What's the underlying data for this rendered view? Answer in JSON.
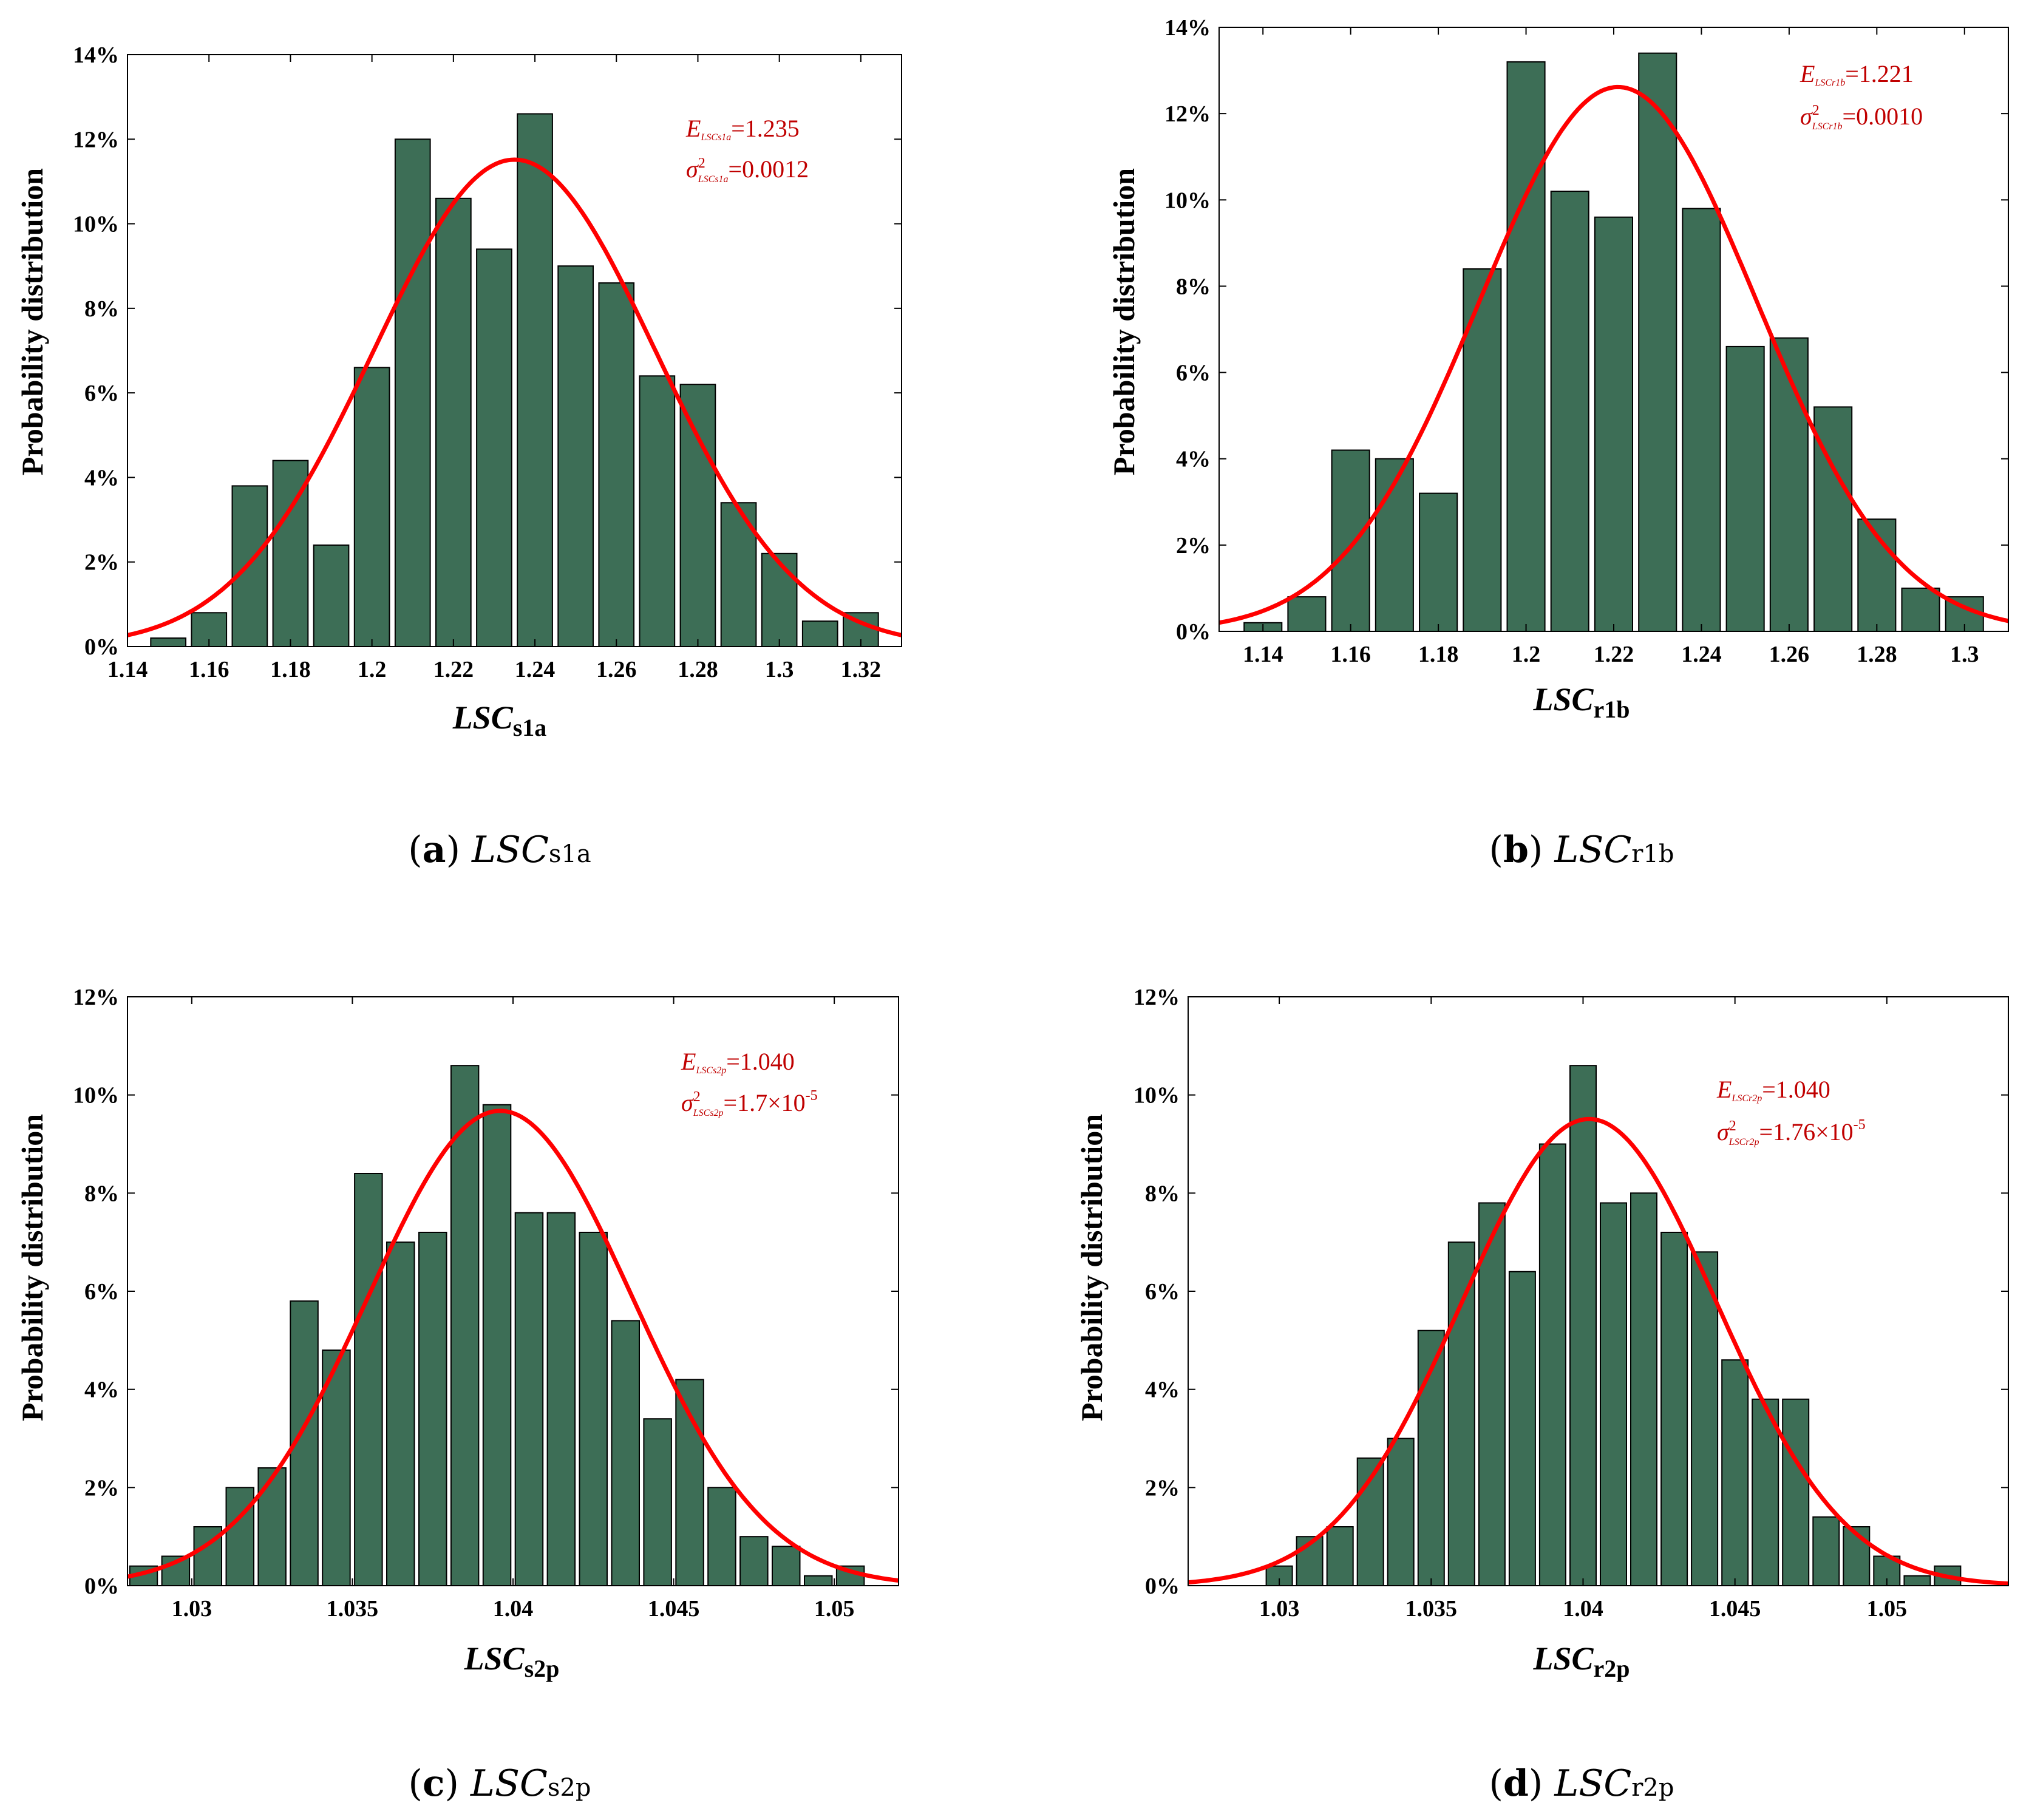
{
  "chart_data": [
    {
      "type": "bar",
      "ylabel": "Probability distribution",
      "xlabel": {
        "main": "LSC",
        "sub": "s1a"
      },
      "xlim": [
        1.14,
        1.33
      ],
      "ylim": [
        0,
        14
      ],
      "xticks": [
        "1.14",
        "1.16",
        "1.18",
        "1.2",
        "1.22",
        "1.24",
        "1.26",
        "1.28",
        "1.3",
        "1.32"
      ],
      "yticks": [
        "0%",
        "2%",
        "4%",
        "6%",
        "8%",
        "10%",
        "12%",
        "14%"
      ],
      "bin_width": 0.01,
      "x": [
        1.15,
        1.16,
        1.17,
        1.18,
        1.19,
        1.2,
        1.21,
        1.22,
        1.23,
        1.24,
        1.25,
        1.26,
        1.27,
        1.28,
        1.29,
        1.3,
        1.31,
        1.32
      ],
      "values": [
        0.2,
        0.8,
        3.8,
        4.4,
        2.4,
        6.6,
        12.0,
        10.6,
        9.4,
        12.6,
        9.0,
        8.6,
        6.4,
        6.2,
        3.4,
        2.2,
        0.6,
        0.8
      ],
      "fit": {
        "mean": 1.235,
        "variance": 0.0012
      },
      "annotation": {
        "e_label": "E",
        "e_sub": "LSCs1a",
        "e_value": "=1.235",
        "s_label": "σ",
        "s_sup": "2",
        "s_sub": "LSCs1a",
        "s_value": "=0.0012",
        "s_exp": ""
      },
      "caption": {
        "letter": "a",
        "main": "LSC",
        "sub": "s1a"
      }
    },
    {
      "type": "bar",
      "ylabel": "Probability distribution",
      "xlabel": {
        "main": "LSC",
        "sub": "r1b"
      },
      "xlim": [
        1.13,
        1.31
      ],
      "ylim": [
        0,
        14
      ],
      "xticks": [
        "1.14",
        "1.16",
        "1.18",
        "1.2",
        "1.22",
        "1.24",
        "1.26",
        "1.28",
        "1.3"
      ],
      "yticks": [
        "0%",
        "2%",
        "4%",
        "6%",
        "8%",
        "10%",
        "12%",
        "14%"
      ],
      "bin_width": 0.01,
      "x": [
        1.14,
        1.15,
        1.16,
        1.17,
        1.18,
        1.19,
        1.2,
        1.21,
        1.22,
        1.23,
        1.24,
        1.25,
        1.26,
        1.27,
        1.28,
        1.29,
        1.3
      ],
      "values": [
        0.2,
        0.8,
        4.2,
        4.0,
        3.2,
        8.4,
        13.2,
        10.2,
        9.6,
        13.4,
        9.8,
        6.6,
        6.8,
        5.2,
        2.6,
        1.0,
        0.8
      ],
      "fit": {
        "mean": 1.221,
        "variance": 0.001
      },
      "annotation": {
        "e_label": "E",
        "e_sub": "LSCr1b",
        "e_value": "=1.221",
        "s_label": "σ",
        "s_sup": "2",
        "s_sub": "LSCr1b",
        "s_value": "=0.0010",
        "s_exp": ""
      },
      "caption": {
        "letter": "b",
        "main": "LSC",
        "sub": "r1b"
      }
    },
    {
      "type": "bar",
      "ylabel": "Probability distribution",
      "xlabel": {
        "main": "LSC",
        "sub": "s2p"
      },
      "xlim": [
        1.028,
        1.052
      ],
      "ylim": [
        0,
        12
      ],
      "xticks": [
        "1.03",
        "1.035",
        "1.04",
        "1.045",
        "1.05"
      ],
      "yticks": [
        "0%",
        "2%",
        "4%",
        "6%",
        "8%",
        "10%",
        "12%"
      ],
      "bin_width": 0.001,
      "x": [
        1.0285,
        1.0295,
        1.0305,
        1.0315,
        1.0325,
        1.0335,
        1.0345,
        1.0355,
        1.0365,
        1.0375,
        1.0385,
        1.0395,
        1.0405,
        1.0415,
        1.0425,
        1.0435,
        1.0445,
        1.0455,
        1.0465,
        1.0475,
        1.0485,
        1.0495,
        1.0505
      ],
      "values": [
        0.4,
        0.6,
        1.2,
        2.0,
        2.4,
        5.8,
        4.8,
        8.4,
        7.0,
        7.2,
        10.6,
        9.8,
        7.6,
        7.6,
        7.2,
        5.4,
        3.4,
        4.2,
        2.0,
        1.0,
        0.8,
        0.2,
        0.4
      ],
      "fit": {
        "mean": 1.0396,
        "variance": 1.7e-05
      },
      "annotation": {
        "e_label": "E",
        "e_sub": "LSCs2p",
        "e_value": "=1.040",
        "s_label": "σ",
        "s_sup": "2",
        "s_sub": "LSCs2p",
        "s_value": "=1.7×10",
        "s_exp": "-5"
      },
      "caption": {
        "letter": "c",
        "main": "LSC",
        "sub": "s2p"
      }
    },
    {
      "type": "bar",
      "ylabel": "Probability distribution",
      "xlabel": {
        "main": "LSC",
        "sub": "r2p"
      },
      "xlim": [
        1.027,
        1.054
      ],
      "ylim": [
        0,
        12
      ],
      "xticks": [
        "1.03",
        "1.035",
        "1.04",
        "1.045",
        "1.05"
      ],
      "yticks": [
        "0%",
        "2%",
        "4%",
        "6%",
        "8%",
        "10%",
        "12%"
      ],
      "bin_width": 0.001,
      "x": [
        1.03,
        1.031,
        1.032,
        1.033,
        1.034,
        1.035,
        1.036,
        1.037,
        1.038,
        1.039,
        1.04,
        1.041,
        1.042,
        1.043,
        1.044,
        1.045,
        1.046,
        1.047,
        1.048,
        1.049,
        1.05,
        1.051,
        1.052
      ],
      "values": [
        0.4,
        1.0,
        1.2,
        2.6,
        3.0,
        5.2,
        7.0,
        7.8,
        6.4,
        9.0,
        10.6,
        7.8,
        8.0,
        7.2,
        6.8,
        4.6,
        3.8,
        3.8,
        1.4,
        1.2,
        0.6,
        0.2,
        0.4
      ],
      "fit": {
        "mean": 1.0402,
        "variance": 1.76e-05
      },
      "annotation": {
        "e_label": "E",
        "e_sub": "LSCr2p",
        "e_value": "=1.040",
        "s_label": "σ",
        "s_sup": "2",
        "s_sub": "LSCr2p",
        "s_value": "=1.76×10",
        "s_exp": "-5"
      },
      "caption": {
        "letter": "d",
        "main": "LSC",
        "sub": "r2p"
      }
    }
  ],
  "colors": {
    "bar_fill": "#3d6e56",
    "bar_stroke": "#000000",
    "fit_line": "#ff0000",
    "annotation": "#c00000"
  }
}
